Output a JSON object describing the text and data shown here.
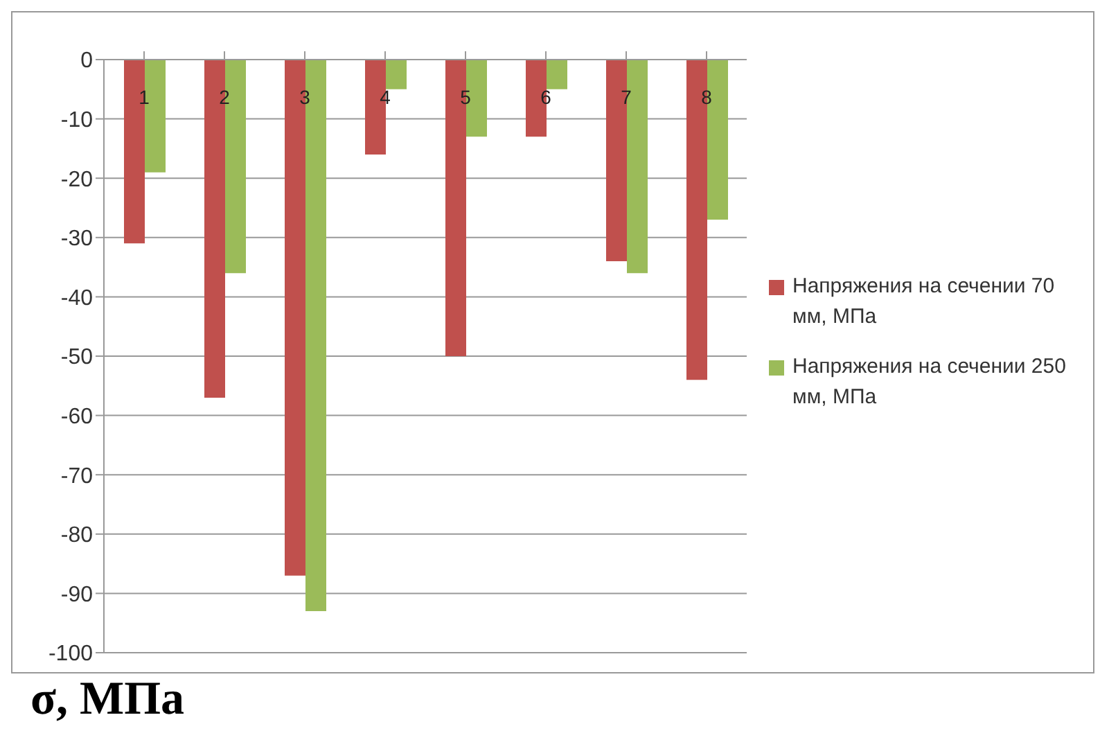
{
  "chart_data": {
    "type": "bar",
    "ylabel": "σ, МПа",
    "categories": [
      "1",
      "2",
      "3",
      "4",
      "5",
      "6",
      "7",
      "8"
    ],
    "series": [
      {
        "name": "Напряжения на сечении 70 мм, МПа",
        "color": "#c0504d",
        "values": [
          -31,
          -57,
          -87,
          -16,
          -50,
          -13,
          -34,
          -54
        ]
      },
      {
        "name": "Напряжения на сечении 250 мм, МПа",
        "color": "#9bbb59",
        "values": [
          -19,
          -36,
          -93,
          -5,
          -13,
          -5,
          -36,
          -27
        ]
      }
    ],
    "ylim": [
      -100,
      0
    ],
    "yticks": [
      0,
      -10,
      -20,
      -30,
      -40,
      -50,
      -60,
      -70,
      -80,
      -90,
      -100
    ],
    "grid": "y",
    "legend": "right"
  }
}
